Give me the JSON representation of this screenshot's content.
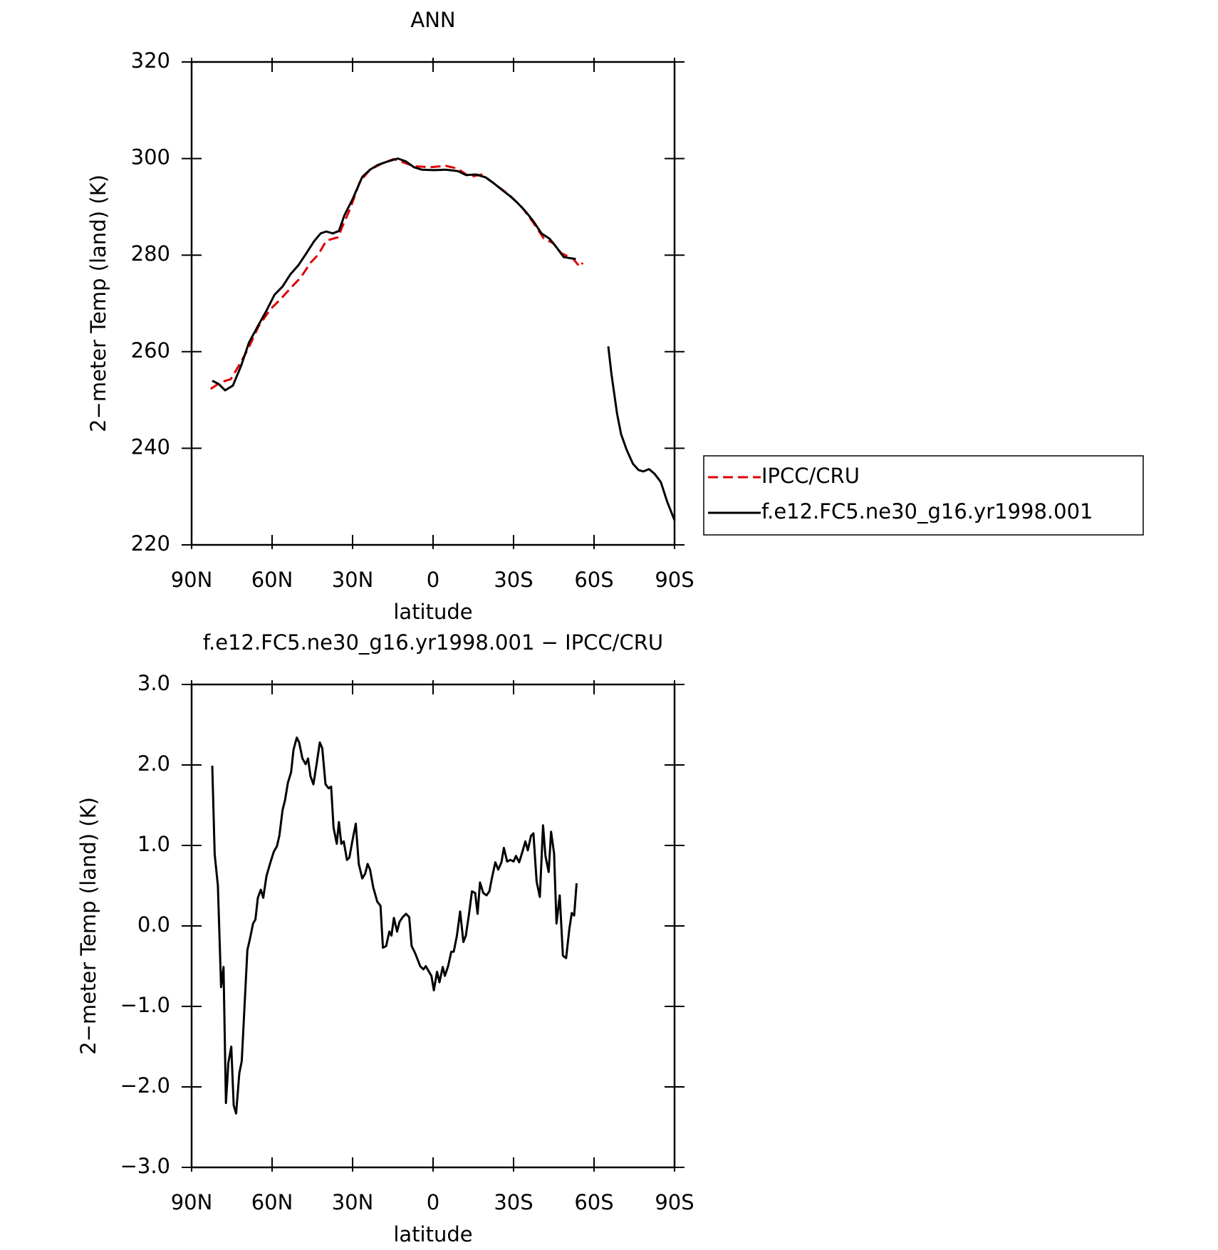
{
  "chart_data": [
    {
      "type": "line",
      "title": "ANN",
      "xlabel": "latitude",
      "ylabel": "2−meter Temp (land) (K)",
      "xlim": [
        90,
        -90
      ],
      "xticks": [
        {
          "value": 90,
          "label": "90N"
        },
        {
          "value": 60,
          "label": "60N"
        },
        {
          "value": 30,
          "label": "30N"
        },
        0,
        {
          "value": -30,
          "label": "30S"
        },
        {
          "value": -60,
          "label": "60S"
        },
        {
          "value": -90,
          "label": "90S"
        }
      ],
      "ylim": [
        220,
        320
      ],
      "yticks": [
        220,
        240,
        260,
        280,
        300,
        320
      ],
      "legend": "right",
      "series": [
        {
          "name": "IPCC/CRU",
          "color": "#e00000",
          "line_style": "dashed",
          "x": [
            82.9,
            79,
            75.4,
            72.5,
            68.9,
            65.1,
            60.6,
            57.0,
            53.2,
            49.3,
            45.7,
            42.8,
            39.8,
            35.4,
            33.9,
            30.9,
            27.3,
            23.5,
            19.0,
            14.6,
            10.1,
            7.1,
            1.2,
            -4.7,
            -9.2,
            -13.7,
            -18.1,
            -22.6,
            -28.5,
            -33.0,
            -37.4,
            -41.3,
            -44.8,
            -47.8,
            -52.3,
            -54.6,
            -55.8
          ],
          "values": [
            252.3,
            253.7,
            254.3,
            257,
            260.6,
            265.2,
            268.8,
            270.8,
            273.1,
            275.4,
            278.4,
            280.1,
            283.0,
            283.7,
            285.8,
            289.6,
            295.2,
            297.7,
            299.0,
            299.9,
            299.0,
            298.4,
            298.2,
            298.5,
            297.9,
            296.2,
            296.7,
            294.9,
            292.4,
            290.0,
            286.7,
            283.4,
            282.5,
            280.4,
            279.2,
            277.6,
            278.4
          ]
        },
        {
          "name": "f.e12.FC5.ne30_g16.yr1998.001",
          "color": "#000000",
          "line_style": "solid",
          "x": [
            82.3,
            79.9,
            77.5,
            74.6,
            71.6,
            68.6,
            65.1,
            62.1,
            59.1,
            56.1,
            53.2,
            50.2,
            47.2,
            44.3,
            41.9,
            39.8,
            37.4,
            35.1,
            33.0,
            30.0,
            26.4,
            23.5,
            20.5,
            16.9,
            13.1,
            10.1,
            7.1,
            4.2,
            -0.3,
            -4.7,
            -9.2,
            -12.2,
            -16.0,
            -19.6,
            -22.6,
            -25.5,
            -28.5,
            -31.5,
            -34.4,
            -37.4,
            -40.4,
            -43.4,
            -46.3,
            -48.7,
            -50.8,
            -53.2,
            -59,
            -65.3,
            -66.5,
            -68.6,
            -70.1,
            -72.2,
            -74.5,
            -76.6,
            -78.4,
            -80.5,
            -82.6,
            -84.9,
            -87.3,
            -90
          ],
          "values": [
            254.0,
            253.3,
            252.0,
            253.0,
            257.0,
            261.9,
            265.5,
            268.5,
            271.8,
            273.5,
            276.0,
            277.9,
            280.4,
            282.9,
            284.5,
            284.9,
            284.5,
            285.0,
            288.3,
            291.6,
            296.2,
            297.7,
            298.7,
            299.4,
            300.0,
            299.4,
            298.2,
            297.7,
            297.6,
            297.7,
            297.4,
            296.6,
            296.7,
            296.1,
            294.9,
            293.6,
            292.3,
            290.8,
            289.1,
            287.0,
            284.5,
            283.4,
            281.4,
            279.6,
            279.4,
            279.2,
            null,
            261.1,
            255.3,
            247.1,
            242.9,
            239.6,
            236.8,
            235.5,
            235.2,
            235.7,
            234.7,
            233.0,
            228.9,
            225.1
          ]
        }
      ]
    },
    {
      "type": "line",
      "title": "f.e12.FC5.ne30_g16.yr1998.001 − IPCC/CRU",
      "xlabel": "latitude",
      "ylabel": "2−meter Temp (land) (K)",
      "xlim": [
        90,
        -90
      ],
      "xticks": [
        {
          "value": 90,
          "label": "90N"
        },
        {
          "value": 60,
          "label": "60N"
        },
        {
          "value": 30,
          "label": "30N"
        },
        0,
        {
          "value": -30,
          "label": "30S"
        },
        {
          "value": -60,
          "label": "60S"
        },
        {
          "value": -90,
          "label": "90S"
        }
      ],
      "ylim": [
        -3,
        3
      ],
      "yticks": [
        {
          "value": -3,
          "label": "−3.0"
        },
        {
          "value": -2,
          "label": "−2.0"
        },
        {
          "value": -1,
          "label": "−1.0"
        },
        {
          "value": 0,
          "label": "0.0"
        },
        {
          "value": 1,
          "label": "1.0"
        },
        {
          "value": 2,
          "label": "2.0"
        },
        {
          "value": 3,
          "label": "3.0"
        }
      ],
      "series": [
        {
          "color": "#000000",
          "line_style": "solid",
          "x": [
            82.3,
            81.4,
            80.2,
            79.0,
            78.1,
            77.2,
            76.3,
            75.2,
            74.3,
            73.4,
            72.2,
            71.3,
            69.2,
            68.3,
            67.1,
            66.2,
            65.3,
            64.2,
            63.3,
            62.1,
            60.6,
            59.4,
            58.2,
            57.3,
            56.1,
            55.2,
            54.1,
            52.9,
            52.0,
            50.8,
            49.9,
            48.7,
            47.5,
            46.6,
            45.7,
            44.6,
            43.4,
            42.2,
            41.3,
            40.1,
            38.9,
            38.0,
            37.1,
            35.9,
            35.1,
            34.2,
            33.3,
            32.1,
            31.2,
            30.0,
            28.8,
            27.7,
            26.4,
            25.3,
            24.4,
            23.5,
            22.3,
            20.8,
            19.6,
            18.7,
            17.5,
            16.3,
            15.5,
            14.6,
            13.4,
            12.5,
            11.3,
            10.1,
            8.9,
            8.0,
            6.8,
            5.7,
            4.8,
            3.6,
            2.7,
            1.5,
            0.6,
            -0.3,
            -1.5,
            -2.4,
            -3.6,
            -4.4,
            -5.6,
            -6.8,
            -7.7,
            -8.9,
            -10.1,
            -11.3,
            -12.2,
            -13.4,
            -14.5,
            -15.7,
            -16.6,
            -17.5,
            -18.7,
            -19.9,
            -21.0,
            -21.9,
            -23.2,
            -24.3,
            -25.5,
            -26.4,
            -27.6,
            -28.8,
            -30.0,
            -30.9,
            -32.1,
            -33.3,
            -34.4,
            -35.3,
            -36.5,
            -37.4,
            -38.6,
            -39.8,
            -41.0,
            -41.9,
            -43.1,
            -44.0,
            -45.1,
            -46.0,
            -47.2,
            -48.4,
            -49.6,
            -50.8,
            -51.7,
            -52.6,
            -53.5
          ],
          "values": [
            1.99,
            0.89,
            0.5,
            -0.76,
            -0.51,
            -2.2,
            -1.7,
            -1.5,
            -2.23,
            -2.33,
            -1.83,
            -1.68,
            -0.3,
            -0.17,
            0.03,
            0.08,
            0.35,
            0.45,
            0.35,
            0.62,
            0.79,
            0.92,
            0.99,
            1.12,
            1.44,
            1.56,
            1.78,
            1.91,
            2.19,
            2.34,
            2.28,
            2.08,
            2.01,
            2.08,
            1.86,
            1.76,
            2.01,
            2.28,
            2.21,
            1.76,
            1.71,
            1.73,
            1.22,
            1.02,
            1.29,
            1.02,
            1.05,
            0.82,
            0.85,
            1.07,
            1.27,
            0.77,
            0.59,
            0.65,
            0.77,
            0.7,
            0.48,
            0.3,
            0.25,
            -0.27,
            -0.25,
            -0.07,
            -0.12,
            0.1,
            -0.07,
            0.05,
            0.11,
            0.15,
            0.11,
            -0.25,
            -0.33,
            -0.42,
            -0.5,
            -0.54,
            -0.5,
            -0.57,
            -0.62,
            -0.8,
            -0.57,
            -0.7,
            -0.51,
            -0.62,
            -0.5,
            -0.32,
            -0.32,
            -0.12,
            0.18,
            -0.2,
            -0.12,
            0.15,
            0.43,
            0.41,
            0.15,
            0.54,
            0.41,
            0.38,
            0.43,
            0.59,
            0.79,
            0.7,
            0.79,
            0.97,
            0.8,
            0.82,
            0.8,
            0.87,
            0.79,
            0.92,
            1.05,
            0.94,
            1.12,
            1.15,
            0.55,
            0.36,
            1.25,
            0.87,
            0.67,
            1.17,
            0.9,
            0.03,
            0.38,
            -0.37,
            -0.4,
            -0.04,
            0.16,
            0.13,
            0.53
          ]
        }
      ]
    }
  ]
}
